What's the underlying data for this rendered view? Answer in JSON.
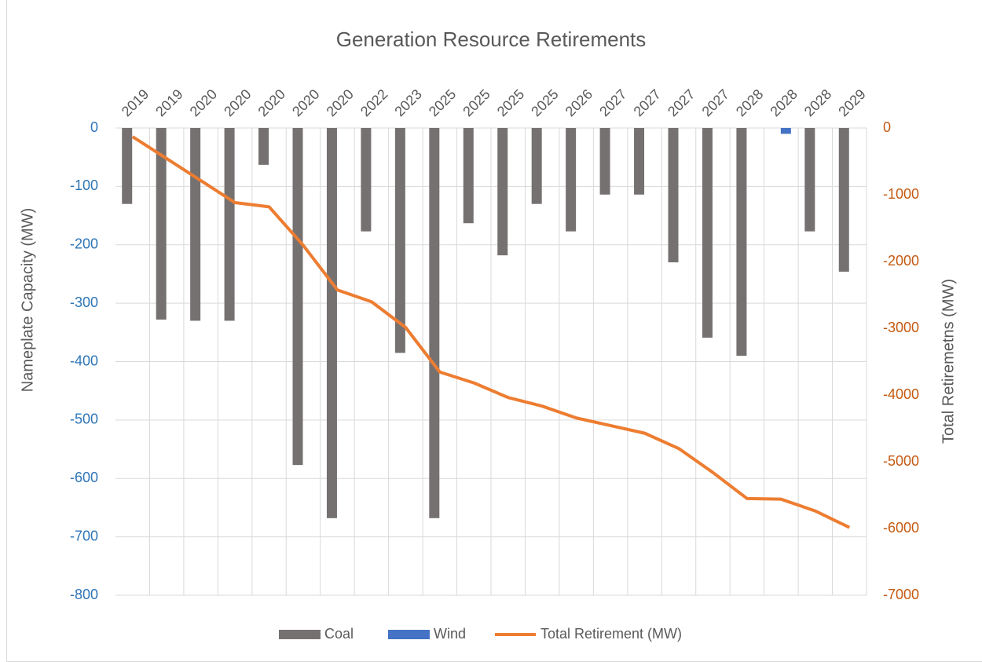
{
  "chart_data": {
    "type": "bar_line",
    "title": "Generation Resource Retirements",
    "y_label": "Nameplate Capacity (MW)",
    "y2_label": "Total Retiremetns (MW)",
    "categories": [
      "2019",
      "2019",
      "2020",
      "2020",
      "2020",
      "2020",
      "2020",
      "2022",
      "2023",
      "2025",
      "2025",
      "2025",
      "2025",
      "2026",
      "2027",
      "2027",
      "2027",
      "2027",
      "2028",
      "2028",
      "2028",
      "2029"
    ],
    "series": [
      {
        "name": "Coal",
        "type": "bar",
        "color": "#767171",
        "values": [
          -130,
          -328,
          -330,
          -330,
          -63,
          -577,
          -668,
          -177,
          -385,
          -668,
          -163,
          -218,
          -130,
          -177,
          -114,
          -114,
          -230,
          -359,
          -390,
          null,
          -177,
          -246
        ]
      },
      {
        "name": "Wind",
        "type": "bar",
        "color": "#4472c4",
        "values": [
          null,
          null,
          null,
          null,
          null,
          null,
          null,
          null,
          null,
          null,
          null,
          null,
          null,
          null,
          null,
          null,
          null,
          null,
          null,
          -10,
          null,
          null
        ]
      },
      {
        "name": "Total Retirement (MW)",
        "type": "line",
        "axis": "y2",
        "color": "#ed7d31",
        "values": [
          -130,
          -458,
          -788,
          -1118,
          -1181,
          -1758,
          -2426,
          -2603,
          -2988,
          -3656,
          -3819,
          -4037,
          -4167,
          -4344,
          -4458,
          -4572,
          -4802,
          -5161,
          -5551,
          -5561,
          -5738,
          -5984
        ]
      }
    ],
    "ylim": [
      0,
      -800
    ],
    "yticks": [
      0,
      -100,
      -200,
      -300,
      -400,
      -500,
      -600,
      -700,
      -800
    ],
    "y2lim": [
      0,
      -7000
    ],
    "y2ticks": [
      0,
      -1000,
      -2000,
      -3000,
      -4000,
      -5000,
      -6000,
      -7000
    ],
    "grid": true,
    "legend": "bottom"
  }
}
